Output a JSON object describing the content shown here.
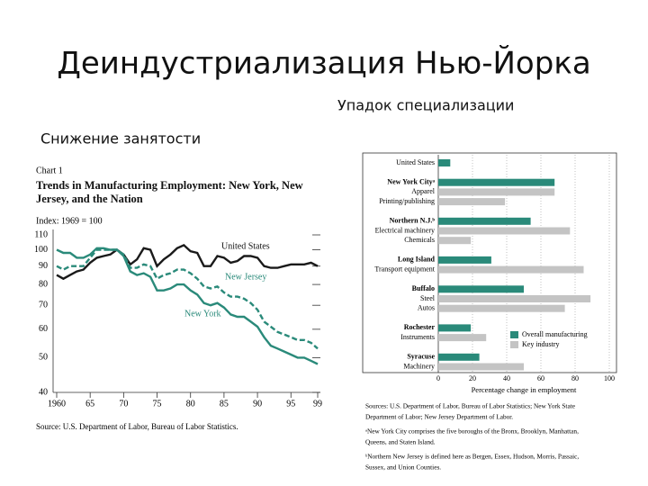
{
  "slide": {
    "title": "Деиндустриализация Нью-Йорка",
    "right_heading": "Упадок специализации",
    "left_heading": "Снижение занятости"
  },
  "chart_data": [
    {
      "type": "line",
      "label": "Chart 1",
      "title": "Trends in Manufacturing Employment: New York, New Jersey, and the Nation",
      "ylabel": "Index: 1969 = 100",
      "source": "Source: U.S. Department of Labor, Bureau of Labor Statistics.",
      "log_scale": true,
      "x": [
        1960,
        1961,
        1962,
        1963,
        1964,
        1965,
        1966,
        1967,
        1968,
        1969,
        1970,
        1971,
        1972,
        1973,
        1974,
        1975,
        1976,
        1977,
        1978,
        1979,
        1980,
        1981,
        1982,
        1983,
        1984,
        1985,
        1986,
        1987,
        1988,
        1989,
        1990,
        1991,
        1992,
        1993,
        1994,
        1995,
        1996,
        1997,
        1998,
        1999
      ],
      "xlim": [
        1960,
        1999
      ],
      "xticks": [
        1960,
        {
          "value": 1965,
          "label": "65"
        },
        {
          "value": 1970,
          "label": "70"
        },
        {
          "value": 1975,
          "label": "75"
        },
        {
          "value": 1980,
          "label": "80"
        },
        {
          "value": 1985,
          "label": "85"
        },
        {
          "value": 1990,
          "label": "90"
        },
        {
          "value": 1995,
          "label": "95"
        },
        {
          "value": 1999,
          "label": "99"
        }
      ],
      "ylim": [
        40,
        110
      ],
      "yticks": [
        40,
        50,
        60,
        70,
        80,
        90,
        100,
        110
      ],
      "series": [
        {
          "name": "United States",
          "color": "#1a1a1a",
          "style": "solid",
          "values": [
            85,
            83,
            85,
            87,
            88,
            92,
            95,
            96,
            97,
            100,
            97,
            91,
            94,
            101,
            100,
            90,
            94,
            97,
            101,
            103,
            99,
            98,
            90,
            90,
            96,
            95,
            92,
            93,
            96,
            96,
            95,
            90,
            89,
            89,
            90,
            91,
            91,
            91,
            92,
            90
          ]
        },
        {
          "name": "New Jersey",
          "color": "#2a8a7a",
          "style": "dashed",
          "values": [
            90,
            88,
            90,
            90,
            90,
            95,
            100,
            100,
            100,
            100,
            97,
            89,
            89,
            91,
            90,
            83,
            85,
            86,
            88,
            88,
            86,
            83,
            79,
            78,
            79,
            76,
            74,
            74,
            73,
            71,
            68,
            63,
            61,
            59,
            58,
            57,
            56,
            56,
            55,
            53
          ]
        },
        {
          "name": "New York",
          "color": "#2a8a7a",
          "style": "solid",
          "values": [
            100,
            98,
            98,
            95,
            95,
            97,
            101,
            101,
            100,
            100,
            96,
            87,
            85,
            86,
            84,
            77,
            77,
            78,
            80,
            80,
            77,
            75,
            71,
            70,
            71,
            69,
            66,
            65,
            65,
            63,
            61,
            57,
            54,
            53,
            52,
            51,
            50,
            50,
            49,
            48
          ]
        }
      ]
    },
    {
      "type": "hbar",
      "xlabel": "Percentage change in employment",
      "categories": [
        "United States",
        "New York Cityᵃ",
        "Apparel",
        "Printing/publishing",
        "Northern N.J.ᵇ",
        "Electrical machinery",
        "Chemicals",
        "Long Island",
        "Transport equipment",
        "Buffalo",
        "Steel",
        "Autos",
        "Rochester",
        "Instruments",
        "Syracuse",
        "Machinery"
      ],
      "xlim": [
        0,
        100
      ],
      "xticks": [
        0,
        20,
        40,
        60,
        80,
        100
      ],
      "grid": true,
      "legend": "lower right",
      "series": [
        {
          "name": "Overall manufacturing",
          "color": "#2a8a7a",
          "values": [
            7,
            68,
            null,
            null,
            54,
            null,
            null,
            31,
            null,
            50,
            null,
            null,
            19,
            null,
            24,
            null
          ]
        },
        {
          "name": "Key industry",
          "color": "#c4c4c4",
          "values": [
            null,
            null,
            68,
            39,
            null,
            77,
            19,
            null,
            85,
            null,
            89,
            74,
            null,
            28,
            null,
            50
          ]
        }
      ],
      "notes": [
        "Sources: U.S. Department of Labor, Bureau of Labor Statistics; New York State",
        "Department of Labor; New Jersey Department of Labor.",
        "ᵃNew York City comprises the five boroughs of the Bronx, Brooklyn, Manhattan,",
        "Queens, and Staten Island.",
        "ᵇNorthern New Jersey is defined here as Bergen, Essex, Hudson, Morris, Passaic,",
        "Sussex, and Union Counties."
      ]
    }
  ]
}
